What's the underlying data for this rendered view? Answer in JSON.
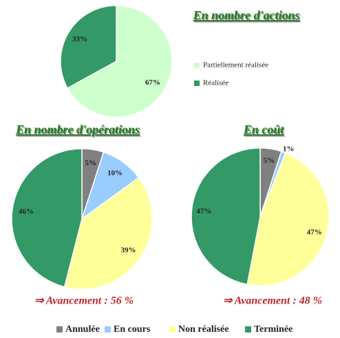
{
  "chart_data": [
    {
      "type": "pie",
      "title": "En nombre d'actions",
      "labels": [
        "Partiellement réalisée",
        "Réalisée"
      ],
      "values": [
        67,
        33
      ],
      "value_labels": [
        "67%",
        "33%"
      ],
      "colors": [
        "#ccffcc",
        "#339966"
      ]
    },
    {
      "type": "pie",
      "title": "En nombre d'opérations",
      "labels": [
        "Annulée",
        "En cours",
        "Non réalisée",
        "Terminée"
      ],
      "values": [
        5,
        10,
        39,
        46
      ],
      "value_labels": [
        "5%",
        "10%",
        "39%",
        "46%"
      ],
      "colors": [
        "#808080",
        "#99ccff",
        "#ffff99",
        "#339966"
      ],
      "annotation": "⇒ Avancement : 56 %"
    },
    {
      "type": "pie",
      "title": "En coût",
      "values": [
        5,
        1,
        47,
        47
      ],
      "value_labels": [
        "5%",
        "1%",
        "47%",
        "47%"
      ],
      "colors": [
        "#808080",
        "#99ccff",
        "#ffff99",
        "#339966"
      ],
      "annotation": "⇒ Avancement : 48 %"
    }
  ]
}
